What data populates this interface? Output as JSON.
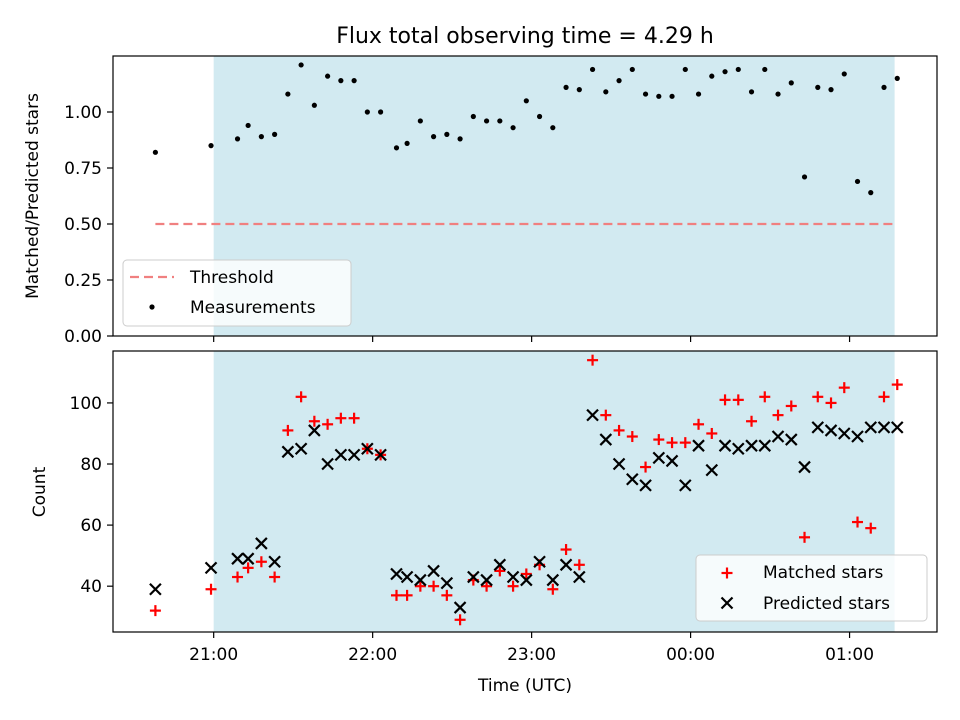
{
  "figure": {
    "title": "Flux total observing time = 4.29 h"
  },
  "chart_data": [
    {
      "type": "scatter",
      "panel": "top",
      "ylabel": "Matched/Predicted stars",
      "ylim": [
        0,
        1.25
      ],
      "yticks": [
        "0.00",
        "0.25",
        "0.50",
        "0.75",
        "1.00"
      ],
      "xlim": [
        "20:22",
        "01:33"
      ],
      "shaded_region": [
        "21:00",
        "01:17"
      ],
      "shaded_color": "#add8e6",
      "threshold": {
        "name": "Threshold",
        "value": 0.5,
        "x": [
          "20:38",
          "01:17"
        ],
        "color": "#f08080"
      },
      "series": [
        {
          "name": "Measurements",
          "color": "#000000",
          "marker": "dot",
          "points": [
            [
              "20:38",
              0.82
            ],
            [
              "20:59",
              0.85
            ],
            [
              "21:09",
              0.88
            ],
            [
              "21:13",
              0.94
            ],
            [
              "21:18",
              0.89
            ],
            [
              "21:23",
              0.9
            ],
            [
              "21:28",
              1.08
            ],
            [
              "21:33",
              1.21
            ],
            [
              "21:38",
              1.03
            ],
            [
              "21:43",
              1.16
            ],
            [
              "21:48",
              1.14
            ],
            [
              "21:53",
              1.14
            ],
            [
              "21:58",
              1.0
            ],
            [
              "22:03",
              1.0
            ],
            [
              "22:09",
              0.84
            ],
            [
              "22:13",
              0.86
            ],
            [
              "22:18",
              0.96
            ],
            [
              "22:23",
              0.89
            ],
            [
              "22:28",
              0.9
            ],
            [
              "22:33",
              0.88
            ],
            [
              "22:38",
              0.98
            ],
            [
              "22:43",
              0.96
            ],
            [
              "22:48",
              0.96
            ],
            [
              "22:53",
              0.93
            ],
            [
              "22:58",
              1.05
            ],
            [
              "23:03",
              0.98
            ],
            [
              "23:08",
              0.93
            ],
            [
              "23:13",
              1.11
            ],
            [
              "23:18",
              1.1
            ],
            [
              "23:23",
              1.19
            ],
            [
              "23:28",
              1.09
            ],
            [
              "23:33",
              1.14
            ],
            [
              "23:38",
              1.19
            ],
            [
              "23:43",
              1.08
            ],
            [
              "23:48",
              1.07
            ],
            [
              "23:53",
              1.07
            ],
            [
              "23:58",
              1.19
            ],
            [
              "00:03",
              1.08
            ],
            [
              "00:08",
              1.16
            ],
            [
              "00:13",
              1.18
            ],
            [
              "00:18",
              1.19
            ],
            [
              "00:23",
              1.09
            ],
            [
              "00:28",
              1.19
            ],
            [
              "00:33",
              1.08
            ],
            [
              "00:38",
              1.13
            ],
            [
              "00:43",
              0.71
            ],
            [
              "00:48",
              1.11
            ],
            [
              "00:53",
              1.1
            ],
            [
              "00:58",
              1.17
            ],
            [
              "01:03",
              0.69
            ],
            [
              "01:08",
              0.64
            ],
            [
              "01:13",
              1.11
            ],
            [
              "01:18",
              1.15
            ]
          ]
        }
      ],
      "legend": "lower-left"
    },
    {
      "type": "scatter",
      "panel": "bottom",
      "xlabel": "Time (UTC)",
      "ylabel": "Count",
      "ylim": [
        25,
        117
      ],
      "yticks": [
        "40",
        "60",
        "80",
        "100"
      ],
      "xticks": [
        "21:00",
        "22:00",
        "23:00",
        "00:00",
        "01:00"
      ],
      "xlim": [
        "20:22",
        "01:33"
      ],
      "shaded_region": [
        "21:00",
        "01:17"
      ],
      "shaded_color": "#add8e6",
      "series": [
        {
          "name": "Matched stars",
          "color": "#ff0000",
          "marker": "plus",
          "points": [
            [
              "20:38",
              32
            ],
            [
              "20:59",
              39
            ],
            [
              "21:09",
              43
            ],
            [
              "21:13",
              46
            ],
            [
              "21:18",
              48
            ],
            [
              "21:23",
              43
            ],
            [
              "21:28",
              91
            ],
            [
              "21:33",
              102
            ],
            [
              "21:38",
              94
            ],
            [
              "21:43",
              93
            ],
            [
              "21:48",
              95
            ],
            [
              "21:53",
              95
            ],
            [
              "21:58",
              85
            ],
            [
              "22:03",
              83
            ],
            [
              "22:09",
              37
            ],
            [
              "22:13",
              37
            ],
            [
              "22:18",
              40
            ],
            [
              "22:23",
              40
            ],
            [
              "22:28",
              37
            ],
            [
              "22:33",
              29
            ],
            [
              "22:38",
              42
            ],
            [
              "22:43",
              40
            ],
            [
              "22:48",
              45
            ],
            [
              "22:53",
              40
            ],
            [
              "22:58",
              44
            ],
            [
              "23:03",
              47
            ],
            [
              "23:08",
              39
            ],
            [
              "23:13",
              52
            ],
            [
              "23:18",
              47
            ],
            [
              "23:23",
              114
            ],
            [
              "23:28",
              96
            ],
            [
              "23:33",
              91
            ],
            [
              "23:38",
              89
            ],
            [
              "23:43",
              79
            ],
            [
              "23:48",
              88
            ],
            [
              "23:53",
              87
            ],
            [
              "23:58",
              87
            ],
            [
              "00:03",
              93
            ],
            [
              "00:08",
              90
            ],
            [
              "00:13",
              101
            ],
            [
              "00:18",
              101
            ],
            [
              "00:23",
              94
            ],
            [
              "00:28",
              102
            ],
            [
              "00:33",
              96
            ],
            [
              "00:38",
              99
            ],
            [
              "00:43",
              56
            ],
            [
              "00:48",
              102
            ],
            [
              "00:53",
              100
            ],
            [
              "00:58",
              105
            ],
            [
              "01:03",
              61
            ],
            [
              "01:08",
              59
            ],
            [
              "01:13",
              102
            ],
            [
              "01:18",
              106
            ]
          ]
        },
        {
          "name": "Predicted stars",
          "color": "#000000",
          "marker": "x",
          "points": [
            [
              "20:38",
              39
            ],
            [
              "20:59",
              46
            ],
            [
              "21:09",
              49
            ],
            [
              "21:13",
              49
            ],
            [
              "21:18",
              54
            ],
            [
              "21:23",
              48
            ],
            [
              "21:28",
              84
            ],
            [
              "21:33",
              85
            ],
            [
              "21:38",
              91
            ],
            [
              "21:43",
              80
            ],
            [
              "21:48",
              83
            ],
            [
              "21:53",
              83
            ],
            [
              "21:58",
              85
            ],
            [
              "22:03",
              83
            ],
            [
              "22:09",
              44
            ],
            [
              "22:13",
              43
            ],
            [
              "22:18",
              42
            ],
            [
              "22:23",
              45
            ],
            [
              "22:28",
              41
            ],
            [
              "22:33",
              33
            ],
            [
              "22:38",
              43
            ],
            [
              "22:43",
              42
            ],
            [
              "22:48",
              47
            ],
            [
              "22:53",
              43
            ],
            [
              "22:58",
              42
            ],
            [
              "23:03",
              48
            ],
            [
              "23:08",
              42
            ],
            [
              "23:13",
              47
            ],
            [
              "23:18",
              43
            ],
            [
              "23:23",
              96
            ],
            [
              "23:28",
              88
            ],
            [
              "23:33",
              80
            ],
            [
              "23:38",
              75
            ],
            [
              "23:43",
              73
            ],
            [
              "23:48",
              82
            ],
            [
              "23:53",
              81
            ],
            [
              "23:58",
              73
            ],
            [
              "00:03",
              86
            ],
            [
              "00:08",
              78
            ],
            [
              "00:13",
              86
            ],
            [
              "00:18",
              85
            ],
            [
              "00:23",
              86
            ],
            [
              "00:28",
              86
            ],
            [
              "00:33",
              89
            ],
            [
              "00:38",
              88
            ],
            [
              "00:43",
              79
            ],
            [
              "00:48",
              92
            ],
            [
              "00:53",
              91
            ],
            [
              "00:58",
              90
            ],
            [
              "01:03",
              89
            ],
            [
              "01:08",
              92
            ],
            [
              "01:13",
              92
            ],
            [
              "01:18",
              92
            ]
          ]
        }
      ],
      "legend": "lower-right"
    }
  ]
}
